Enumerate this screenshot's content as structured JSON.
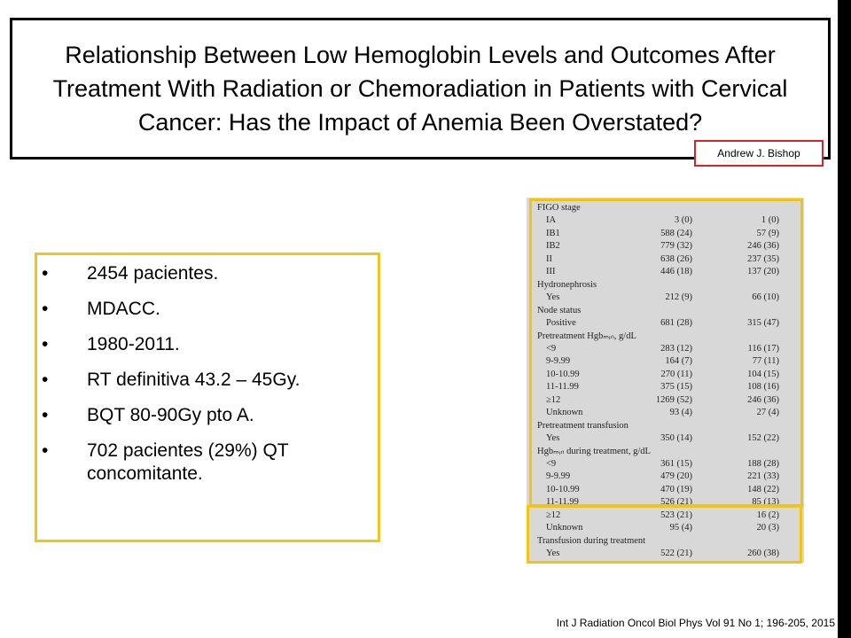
{
  "title": "Relationship Between Low Hemoglobin Levels and Outcomes After Treatment With Radiation or Chemoradiation in Patients with Cervical Cancer: Has the Impact of Anemia Been Overstated?",
  "author": "Andrew J. Bishop",
  "bullets": [
    "2454 pacientes.",
    "MDACC.",
    "1980-2011.",
    "RT definitiva 43.2 – 45Gy.",
    "BQT 80-90Gy pto A.",
    "702 pacientes (29%) QT concomitante."
  ],
  "bullet_char": "•",
  "table": {
    "rows": [
      {
        "label": "FIGO stage",
        "a": "",
        "b": "",
        "indent": false
      },
      {
        "label": "IA",
        "a": "3 (0)",
        "b": "1 (0)",
        "indent": true
      },
      {
        "label": "IB1",
        "a": "588 (24)",
        "b": "57 (9)",
        "indent": true
      },
      {
        "label": "IB2",
        "a": "779 (32)",
        "b": "246 (36)",
        "indent": true
      },
      {
        "label": "II",
        "a": "638 (26)",
        "b": "237 (35)",
        "indent": true
      },
      {
        "label": "III",
        "a": "446 (18)",
        "b": "137 (20)",
        "indent": true
      },
      {
        "label": "Hydronephrosis",
        "a": "",
        "b": "",
        "indent": false
      },
      {
        "label": "Yes",
        "a": "212 (9)",
        "b": "66 (10)",
        "indent": true
      },
      {
        "label": "Node status",
        "a": "",
        "b": "",
        "indent": false
      },
      {
        "label": "Positive",
        "a": "681 (28)",
        "b": "315 (47)",
        "indent": true
      },
      {
        "label": "Pretreatment Hgbₘᵢₙ, g/dL",
        "a": "",
        "b": "",
        "indent": false
      },
      {
        "label": "<9",
        "a": "283 (12)",
        "b": "116 (17)",
        "indent": true
      },
      {
        "label": "9-9.99",
        "a": "164 (7)",
        "b": "77 (11)",
        "indent": true
      },
      {
        "label": "10-10.99",
        "a": "270 (11)",
        "b": "104 (15)",
        "indent": true
      },
      {
        "label": "11-11.99",
        "a": "375 (15)",
        "b": "108 (16)",
        "indent": true
      },
      {
        "label": "≥12",
        "a": "1269 (52)",
        "b": "246 (36)",
        "indent": true
      },
      {
        "label": "Unknown",
        "a": "93 (4)",
        "b": "27 (4)",
        "indent": true
      },
      {
        "label": "Pretreatment transfusion",
        "a": "",
        "b": "",
        "indent": false
      },
      {
        "label": "Yes",
        "a": "350 (14)",
        "b": "152 (22)",
        "indent": true
      },
      {
        "label": "Hgbₘᵢₙ during treatment, g/dL",
        "a": "",
        "b": "",
        "indent": false
      },
      {
        "label": "<9",
        "a": "361 (15)",
        "b": "188 (28)",
        "indent": true
      },
      {
        "label": "9-9.99",
        "a": "479 (20)",
        "b": "221 (33)",
        "indent": true
      },
      {
        "label": "10-10.99",
        "a": "470 (19)",
        "b": "148 (22)",
        "indent": true
      },
      {
        "label": "11-11.99",
        "a": "526 (21)",
        "b": "85 (13)",
        "indent": true
      },
      {
        "label": "≥12",
        "a": "523 (21)",
        "b": "16 (2)",
        "indent": true
      },
      {
        "label": "Unknown",
        "a": "95 (4)",
        "b": "20 (3)",
        "indent": true
      },
      {
        "label": "Transfusion during treatment",
        "a": "",
        "b": "",
        "indent": false
      },
      {
        "label": "Yes",
        "a": "522 (21)",
        "b": "260 (38)",
        "indent": true
      }
    ]
  },
  "citation": "Int J Radiation Oncol Biol Phys Vol 91 No 1; 196-205, 2015",
  "colors": {
    "highlight_border": "#f2c318",
    "author_border": "#d9212a",
    "table_background": "#d8d8d8"
  }
}
